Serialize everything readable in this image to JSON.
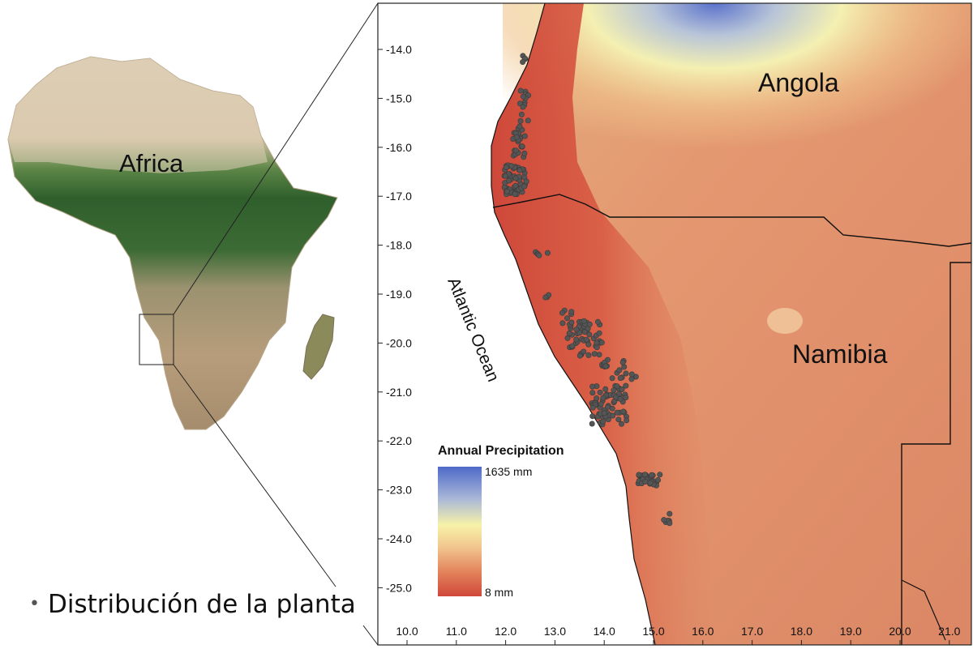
{
  "inset_map": {
    "label": "Africa"
  },
  "detail_map": {
    "country_labels": [
      "Angola",
      "Namibia"
    ],
    "ocean_label": "Atlantic Ocean",
    "y_ticks": [
      "-14.0",
      "-15.0",
      "-16.0",
      "-17.0",
      "-18.0",
      "-19.0",
      "-20.0",
      "-21.0",
      "-22.0",
      "-23.0",
      "-24.0",
      "-25.0"
    ],
    "x_ticks": [
      "10.0",
      "11.0",
      "12.0",
      "13.0",
      "14.0",
      "15.0",
      "16.0",
      "17.0",
      "18.0",
      "19.0",
      "20.0",
      "21.0"
    ],
    "legend": {
      "title": "Annual Precipitation",
      "max_label": "1635 mm",
      "min_label": "8 mm"
    }
  },
  "caption": {
    "text": "Distribución de la planta"
  },
  "colors": {
    "precip_low": "#d24a3a",
    "precip_mid": "#eeb27a",
    "precip_high_yellow": "#f7f2a8",
    "precip_max": "#4f69c8",
    "occurrence_points": "#555555",
    "sahara": "#d8c5a6",
    "forest": "#3c6b35"
  }
}
